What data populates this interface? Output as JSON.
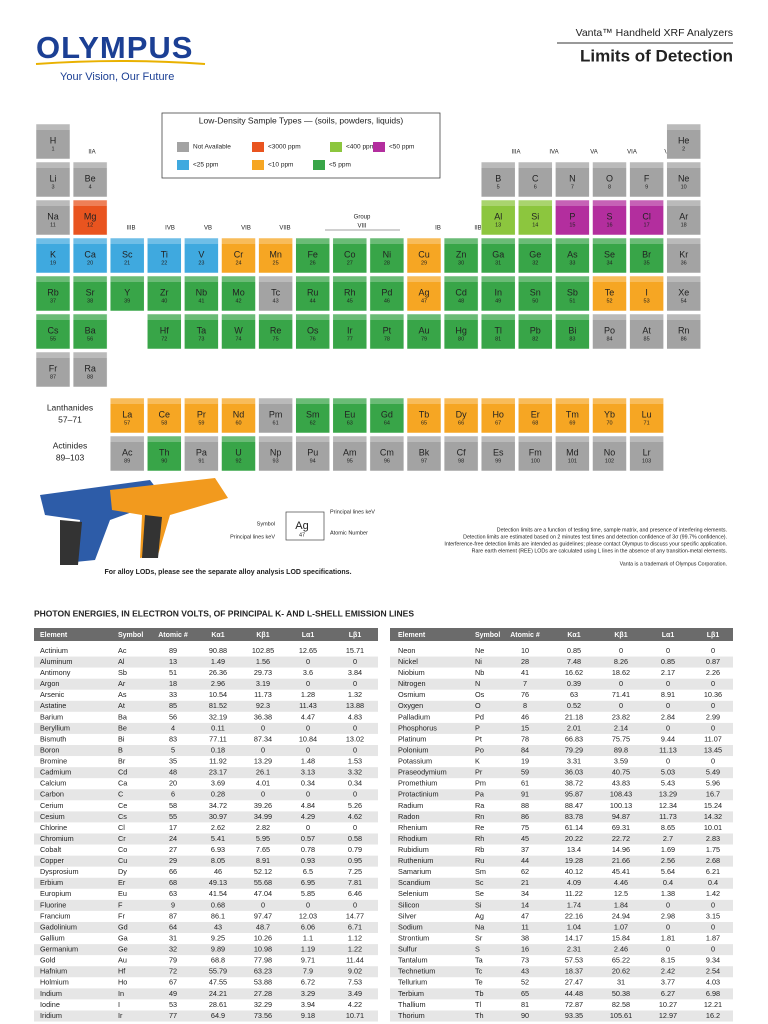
{
  "header": {
    "brand": "OLYMPUS",
    "tagline": "Your Vision, Our Future",
    "product": "Vanta™ Handheld XRF Analyzers",
    "title": "Limits of Detection"
  },
  "legend": {
    "title": "Low-Density Sample Types — (soils, powders, liquids)",
    "items": [
      {
        "label": "Not Available",
        "color": "#a3a3a3"
      },
      {
        "label": "<3000 ppm",
        "color": "#e9541f"
      },
      {
        "label": "<400 ppm",
        "color": "#8cc63e"
      },
      {
        "label": "<50 ppm",
        "color": "#b32e9e"
      },
      {
        "label": "<25 ppm",
        "color": "#3fa9df"
      },
      {
        "label": "<10 ppm",
        "color": "#f6a623"
      },
      {
        "label": "<5 ppm",
        "color": "#38a548"
      }
    ]
  },
  "groups": [
    "IIA",
    "IIIB",
    "IVB",
    "VB",
    "VIB",
    "VIIB",
    "Group",
    "VIII",
    "IB",
    "IIB",
    "IIIA",
    "IVA",
    "VA",
    "VIA",
    "VIIA"
  ],
  "series_labels": {
    "lanthanides": "Lanthanides",
    "lanthanide_range": "57–71",
    "actinides": "Actinides",
    "actinide_range": "89–103"
  },
  "elements": [
    [
      "H",
      1,
      0
    ],
    [
      "He",
      2,
      0
    ],
    [
      "Li",
      3,
      0
    ],
    [
      "Be",
      4,
      0
    ],
    [
      "B",
      5,
      0
    ],
    [
      "C",
      6,
      0
    ],
    [
      "N",
      7,
      0
    ],
    [
      "O",
      8,
      0
    ],
    [
      "F",
      9,
      0
    ],
    [
      "Ne",
      10,
      0
    ],
    [
      "Na",
      11,
      0
    ],
    [
      "Mg",
      12,
      1
    ],
    [
      "Al",
      13,
      2
    ],
    [
      "Si",
      14,
      2
    ],
    [
      "P",
      15,
      3
    ],
    [
      "S",
      16,
      3
    ],
    [
      "Cl",
      17,
      3
    ],
    [
      "Ar",
      18,
      0
    ],
    [
      "K",
      19,
      4
    ],
    [
      "Ca",
      20,
      4
    ],
    [
      "Sc",
      21,
      4
    ],
    [
      "Ti",
      22,
      4
    ],
    [
      "V",
      23,
      4
    ],
    [
      "Cr",
      24,
      5
    ],
    [
      "Mn",
      25,
      5
    ],
    [
      "Fe",
      26,
      6
    ],
    [
      "Co",
      27,
      6
    ],
    [
      "Ni",
      28,
      6
    ],
    [
      "Cu",
      29,
      5
    ],
    [
      "Zn",
      30,
      6
    ],
    [
      "Ga",
      31,
      6
    ],
    [
      "Ge",
      32,
      6
    ],
    [
      "As",
      33,
      6
    ],
    [
      "Se",
      34,
      6
    ],
    [
      "Br",
      35,
      6
    ],
    [
      "Kr",
      36,
      0
    ],
    [
      "Rb",
      37,
      6
    ],
    [
      "Sr",
      38,
      6
    ],
    [
      "Y",
      39,
      6
    ],
    [
      "Zr",
      40,
      6
    ],
    [
      "Nb",
      41,
      6
    ],
    [
      "Mo",
      42,
      6
    ],
    [
      "Tc",
      43,
      0
    ],
    [
      "Ru",
      44,
      6
    ],
    [
      "Rh",
      45,
      6
    ],
    [
      "Pd",
      46,
      6
    ],
    [
      "Ag",
      47,
      5
    ],
    [
      "Cd",
      48,
      6
    ],
    [
      "In",
      49,
      6
    ],
    [
      "Sn",
      50,
      6
    ],
    [
      "Sb",
      51,
      6
    ],
    [
      "Te",
      52,
      5
    ],
    [
      "I",
      53,
      5
    ],
    [
      "Xe",
      54,
      0
    ],
    [
      "Cs",
      55,
      6
    ],
    [
      "Ba",
      56,
      6
    ],
    [
      "Hf",
      72,
      6
    ],
    [
      "Ta",
      73,
      6
    ],
    [
      "W",
      74,
      6
    ],
    [
      "Re",
      75,
      6
    ],
    [
      "Os",
      76,
      6
    ],
    [
      "Ir",
      77,
      6
    ],
    [
      "Pt",
      78,
      6
    ],
    [
      "Au",
      79,
      6
    ],
    [
      "Hg",
      80,
      6
    ],
    [
      "Tl",
      81,
      6
    ],
    [
      "Pb",
      82,
      6
    ],
    [
      "Bi",
      83,
      6
    ],
    [
      "Po",
      84,
      0
    ],
    [
      "At",
      85,
      0
    ],
    [
      "Rn",
      86,
      0
    ],
    [
      "Fr",
      87,
      0
    ],
    [
      "Ra",
      88,
      0
    ],
    [
      "La",
      57,
      5
    ],
    [
      "Ce",
      58,
      5
    ],
    [
      "Pr",
      59,
      5
    ],
    [
      "Nd",
      60,
      5
    ],
    [
      "Pm",
      61,
      0
    ],
    [
      "Sm",
      62,
      6
    ],
    [
      "Eu",
      63,
      6
    ],
    [
      "Gd",
      64,
      6
    ],
    [
      "Tb",
      65,
      5
    ],
    [
      "Dy",
      66,
      5
    ],
    [
      "Ho",
      67,
      5
    ],
    [
      "Er",
      68,
      5
    ],
    [
      "Tm",
      69,
      5
    ],
    [
      "Yb",
      70,
      5
    ],
    [
      "Lu",
      71,
      5
    ],
    [
      "Ac",
      89,
      0
    ],
    [
      "Th",
      90,
      6
    ],
    [
      "Pa",
      91,
      0
    ],
    [
      "U",
      92,
      6
    ],
    [
      "Np",
      93,
      0
    ],
    [
      "Pu",
      94,
      0
    ],
    [
      "Am",
      95,
      0
    ],
    [
      "Cm",
      96,
      0
    ],
    [
      "Bk",
      97,
      0
    ],
    [
      "Cf",
      98,
      0
    ],
    [
      "Es",
      99,
      0
    ],
    [
      "Fm",
      100,
      0
    ],
    [
      "Md",
      101,
      0
    ],
    [
      "No",
      102,
      0
    ],
    [
      "Lr",
      103,
      0
    ]
  ],
  "key": {
    "symbol_label": "Symbol",
    "lines_label": "Principal lines keV",
    "lines_label_2": "Principal lines keV",
    "atomic_label": "Atomic Number",
    "example_symbol": "Ag",
    "example_number": 47
  },
  "alloy_note": "For alloy LODs, please see the separate alloy analysis LOD specifications.",
  "notes": [
    "Detection limits are a function of testing time, sample matrix, and presence of interfering elements.",
    "Detection limits are estimated based on 2 minutes test times and detection confidence of 3σ (99.7% confidence).",
    "Interference-free detection limits are intended as guidelines; please contact Olympus to discuss your specific application.",
    "Rare earth element (REE) LODs are calculated using L lines in the absence of any transition-metal elements."
  ],
  "trademark": "Vanta is a trademark of Olympus Corporation.",
  "table": {
    "title": "PHOTON ENERGIES, IN ELECTRON VOLTS, OF PRINCIPAL K- AND L-SHELL EMISSION LINES",
    "columns": [
      "Element",
      "Symbol",
      "Atomic #",
      "Kα1",
      "Kβ1",
      "Lα1",
      "Lβ1"
    ],
    "left": [
      [
        "Actinium",
        "Ac",
        89,
        90.88,
        102.85,
        12.65,
        15.71
      ],
      [
        "Aluminum",
        "Al",
        13,
        1.49,
        1.56,
        0,
        0
      ],
      [
        "Antimony",
        "Sb",
        51,
        26.36,
        29.73,
        3.6,
        3.84
      ],
      [
        "Argon",
        "Ar",
        18,
        2.96,
        3.19,
        0,
        0
      ],
      [
        "Arsenic",
        "As",
        33,
        10.54,
        11.73,
        1.28,
        1.32
      ],
      [
        "Astatine",
        "At",
        85,
        81.52,
        92.3,
        11.43,
        13.88
      ],
      [
        "Barium",
        "Ba",
        56,
        32.19,
        36.38,
        4.47,
        4.83
      ],
      [
        "Beryllium",
        "Be",
        4,
        0.11,
        0,
        0,
        0
      ],
      [
        "Bismuth",
        "Bi",
        83,
        77.11,
        87.34,
        10.84,
        13.02
      ],
      [
        "Boron",
        "B",
        5,
        0.18,
        0,
        0,
        0
      ],
      [
        "Bromine",
        "Br",
        35,
        11.92,
        13.29,
        1.48,
        1.53
      ],
      [
        "Cadmium",
        "Cd",
        48,
        23.17,
        26.1,
        3.13,
        3.32
      ],
      [
        "Calcium",
        "Ca",
        20,
        3.69,
        4.01,
        0.34,
        0.34
      ],
      [
        "Carbon",
        "C",
        6,
        0.28,
        0,
        0,
        0
      ],
      [
        "Cerium",
        "Ce",
        58,
        34.72,
        39.26,
        4.84,
        5.26
      ],
      [
        "Cesium",
        "Cs",
        55,
        30.97,
        34.99,
        4.29,
        4.62
      ],
      [
        "Chlorine",
        "Cl",
        17,
        2.62,
        2.82,
        0,
        0
      ],
      [
        "Chromium",
        "Cr",
        24,
        5.41,
        5.95,
        0.57,
        0.58
      ],
      [
        "Cobalt",
        "Co",
        27,
        6.93,
        7.65,
        0.78,
        0.79
      ],
      [
        "Copper",
        "Cu",
        29,
        8.05,
        8.91,
        0.93,
        0.95
      ],
      [
        "Dysprosium",
        "Dy",
        66,
        46,
        52.12,
        6.5,
        7.25
      ],
      [
        "Erbium",
        "Er",
        68,
        49.13,
        55.68,
        6.95,
        7.81
      ],
      [
        "Europium",
        "Eu",
        63,
        41.54,
        47.04,
        5.85,
        6.46
      ],
      [
        "Fluorine",
        "F",
        9,
        0.68,
        0,
        0,
        0
      ],
      [
        "Francium",
        "Fr",
        87,
        86.1,
        97.47,
        12.03,
        14.77
      ],
      [
        "Gadolinium",
        "Gd",
        64,
        43,
        48.7,
        6.06,
        6.71
      ],
      [
        "Gallium",
        "Ga",
        31,
        9.25,
        10.26,
        1.1,
        1.12
      ],
      [
        "Germanium",
        "Ge",
        32,
        9.89,
        10.98,
        1.19,
        1.22
      ],
      [
        "Gold",
        "Au",
        79,
        68.8,
        77.98,
        9.71,
        11.44
      ],
      [
        "Hafnium",
        "Hf",
        72,
        55.79,
        63.23,
        7.9,
        9.02
      ],
      [
        "Holmium",
        "Ho",
        67,
        47.55,
        53.88,
        6.72,
        7.53
      ],
      [
        "Indium",
        "In",
        49,
        24.21,
        27.28,
        3.29,
        3.49
      ],
      [
        "Iodine",
        "I",
        53,
        28.61,
        32.29,
        3.94,
        4.22
      ],
      [
        "Iridium",
        "Ir",
        77,
        64.9,
        73.56,
        9.18,
        10.71
      ]
    ],
    "right": [
      [
        "Neon",
        "Ne",
        10,
        0.85,
        0,
        0,
        0
      ],
      [
        "Nickel",
        "Ni",
        28,
        7.48,
        8.26,
        0.85,
        0.87
      ],
      [
        "Niobium",
        "Nb",
        41,
        16.62,
        18.62,
        2.17,
        2.26
      ],
      [
        "Nitrogen",
        "N",
        7,
        0.39,
        0,
        0,
        0
      ],
      [
        "Osmium",
        "Os",
        76,
        63,
        71.41,
        8.91,
        10.36
      ],
      [
        "Oxygen",
        "O",
        8,
        0.52,
        0,
        0,
        0
      ],
      [
        "Palladium",
        "Pd",
        46,
        21.18,
        23.82,
        2.84,
        2.99
      ],
      [
        "Phosphorus",
        "P",
        15,
        2.01,
        2.14,
        0,
        0
      ],
      [
        "Platinum",
        "Pt",
        78,
        66.83,
        75.75,
        9.44,
        11.07
      ],
      [
        "Polonium",
        "Po",
        84,
        79.29,
        89.8,
        11.13,
        13.45
      ],
      [
        "Potassium",
        "K",
        19,
        3.31,
        3.59,
        0,
        0
      ],
      [
        "Praseodymium",
        "Pr",
        59,
        36.03,
        40.75,
        5.03,
        5.49
      ],
      [
        "Promethium",
        "Pm",
        61,
        38.72,
        43.83,
        5.43,
        5.96
      ],
      [
        "Protactinium",
        "Pa",
        91,
        95.87,
        108.43,
        13.29,
        16.7
      ],
      [
        "Radium",
        "Ra",
        88,
        88.47,
        100.13,
        12.34,
        15.24
      ],
      [
        "Radon",
        "Rn",
        86,
        83.78,
        94.87,
        11.73,
        14.32
      ],
      [
        "Rhenium",
        "Re",
        75,
        61.14,
        69.31,
        8.65,
        10.01
      ],
      [
        "Rhodium",
        "Rh",
        45,
        20.22,
        22.72,
        2.7,
        2.83
      ],
      [
        "Rubidium",
        "Rb",
        37,
        13.4,
        14.96,
        1.69,
        1.75
      ],
      [
        "Ruthenium",
        "Ru",
        44,
        19.28,
        21.66,
        2.56,
        2.68
      ],
      [
        "Samarium",
        "Sm",
        62,
        40.12,
        45.41,
        5.64,
        6.21
      ],
      [
        "Scandium",
        "Sc",
        21,
        4.09,
        4.46,
        0.4,
        0.4
      ],
      [
        "Selenium",
        "Se",
        34,
        11.22,
        12.5,
        1.38,
        1.42
      ],
      [
        "Silicon",
        "Si",
        14,
        1.74,
        1.84,
        0,
        0
      ],
      [
        "Silver",
        "Ag",
        47,
        22.16,
        24.94,
        2.98,
        3.15
      ],
      [
        "Sodium",
        "Na",
        11,
        1.04,
        1.07,
        0,
        0
      ],
      [
        "Strontium",
        "Sr",
        38,
        14.17,
        15.84,
        1.81,
        1.87
      ],
      [
        "Sulfur",
        "S",
        16,
        2.31,
        2.46,
        0,
        0
      ],
      [
        "Tantalum",
        "Ta",
        73,
        57.53,
        65.22,
        8.15,
        9.34
      ],
      [
        "Technetium",
        "Tc",
        43,
        18.37,
        20.62,
        2.42,
        2.54
      ],
      [
        "Tellurium",
        "Te",
        52,
        27.47,
        31,
        3.77,
        4.03
      ],
      [
        "Terbium",
        "Tb",
        65,
        44.48,
        50.38,
        6.27,
        6.98
      ],
      [
        "Thallium",
        "Tl",
        81,
        72.87,
        82.58,
        10.27,
        12.21
      ],
      [
        "Thorium",
        "Th",
        90,
        93.35,
        105.61,
        12.97,
        16.2
      ]
    ]
  }
}
